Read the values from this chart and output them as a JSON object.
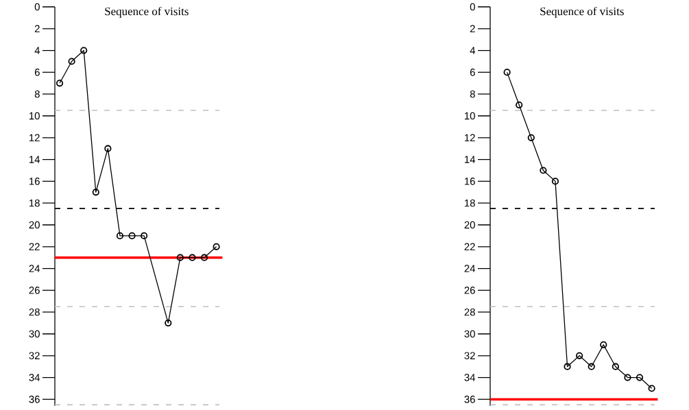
{
  "chart_data": [
    {
      "type": "line",
      "title": "Sequence of visits",
      "categories": [
        null,
        null,
        null,
        null,
        null,
        null,
        null,
        null,
        null,
        null,
        null,
        null,
        null,
        null
      ],
      "values": [
        7,
        5,
        4,
        17,
        13,
        21,
        21,
        21,
        null,
        29,
        23,
        23,
        23,
        22
      ],
      "color": "#000000",
      "marker": "circle",
      "ylim": [
        36.6,
        0
      ],
      "yticks": [
        0,
        2,
        4,
        6,
        8,
        10,
        12,
        14,
        16,
        18,
        20,
        22,
        24,
        26,
        28,
        30,
        32,
        34,
        36
      ],
      "tick_labels": "y",
      "ref_lines": [
        {
          "axis": "y",
          "value": 9.5,
          "color": "#c0c0c0",
          "line_style": "dashed"
        },
        {
          "axis": "y",
          "value": 18.5,
          "color": "#000000",
          "line_style": "dashed"
        },
        {
          "axis": "y",
          "value": 23,
          "color": "#ff0000",
          "line_style": "solid"
        },
        {
          "axis": "y",
          "value": 27.5,
          "color": "#c0c0c0",
          "line_style": "dashed"
        },
        {
          "axis": "y",
          "value": 36.5,
          "color": "#c0c0c0",
          "line_style": "dashed"
        }
      ]
    },
    {
      "type": "line",
      "title": "Sequence of visits",
      "categories": [
        null,
        null,
        null,
        null,
        null,
        null,
        null,
        null,
        null,
        null,
        null,
        null,
        null,
        null
      ],
      "values": [
        null,
        6,
        9,
        12,
        15,
        16,
        33,
        32,
        33,
        31,
        33,
        34,
        34,
        35
      ],
      "color": "#000000",
      "marker": "circle",
      "ylim": [
        36.6,
        0
      ],
      "yticks": [
        0,
        2,
        4,
        6,
        8,
        10,
        12,
        14,
        16,
        18,
        20,
        22,
        24,
        26,
        28,
        30,
        32,
        34,
        36
      ],
      "tick_labels": "y",
      "ref_lines": [
        {
          "axis": "y",
          "value": 9.5,
          "color": "#c0c0c0",
          "line_style": "dashed"
        },
        {
          "axis": "y",
          "value": 18.5,
          "color": "#000000",
          "line_style": "dashed"
        },
        {
          "axis": "y",
          "value": 36,
          "color": "#ff0000",
          "line_style": "solid"
        },
        {
          "axis": "y",
          "value": 27.5,
          "color": "#c0c0c0",
          "line_style": "dashed"
        },
        {
          "axis": "y",
          "value": 36.5,
          "color": "#c0c0c0",
          "line_style": "dashed"
        }
      ]
    }
  ]
}
